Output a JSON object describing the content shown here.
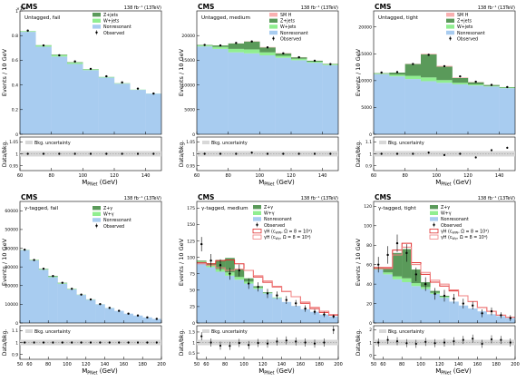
{
  "colors": {
    "nonres": "#a8ccf0",
    "wjets": "#90ee90",
    "zjets": "#5a9a5a",
    "smh": "#f9b0b0",
    "phi1": "#e03030",
    "phi2": "#f08080",
    "unc": "#d8d8d8"
  },
  "chart_data": [
    {
      "type": "histogram",
      "cms": "CMS",
      "lumi": "138 fb⁻¹ (13TeV)",
      "category": "Untagged, fail",
      "xlabel": "M",
      "xlabel_sub": "PNet",
      "xlabel_unit": " (GeV)",
      "ylabel": "Events / 10 GeV",
      "ratio_ylabel": "Data/bkg.",
      "exponent": "×10⁶",
      "xlim": [
        60,
        150
      ],
      "ylim": [
        0,
        1.0
      ],
      "xticks": [
        60,
        80,
        100,
        120,
        140
      ],
      "yticks": [
        0,
        0.2,
        0.4,
        0.6,
        0.8,
        1.0
      ],
      "ytick_labels": [
        "0",
        "0.2",
        "0.4",
        "0.6",
        "0.8",
        "1"
      ],
      "ratio_yticks": [
        0.95,
        1.0,
        1.05
      ],
      "ratio_ylim": [
        0.93,
        1.07
      ],
      "bin_edges": [
        60,
        70,
        80,
        90,
        100,
        110,
        120,
        130,
        140,
        150
      ],
      "stack": [
        {
          "key": "nonres",
          "values": [
            0.83,
            0.71,
            0.63,
            0.57,
            0.52,
            0.46,
            0.41,
            0.36,
            0.33
          ]
        },
        {
          "key": "wjets",
          "values": [
            0.005,
            0.01,
            0.012,
            0.01,
            0.006,
            0.004,
            0.003,
            0.002,
            0.001
          ]
        },
        {
          "key": "zjets",
          "values": [
            0.001,
            0.002,
            0.004,
            0.004,
            0.002,
            0.001,
            0.001,
            0,
            0
          ]
        }
      ],
      "observed": [
        0.84,
        0.72,
        0.64,
        0.59,
        0.53,
        0.47,
        0.42,
        0.37,
        0.33
      ],
      "ratio": [
        1.0,
        1.0,
        1.0,
        1.0,
        1.0,
        1.0,
        1.0,
        1.0,
        1.0
      ],
      "legend": [
        {
          "key": "zjets",
          "label": "Z+jets",
          "kind": "fill"
        },
        {
          "key": "wjets",
          "label": "W+jets",
          "kind": "fill"
        },
        {
          "key": "nonres",
          "label": "Nonresonant",
          "kind": "fill"
        },
        {
          "key": "obs",
          "label": "Observed",
          "kind": "point"
        }
      ],
      "unc_label": "Bkg. uncertainty"
    },
    {
      "type": "histogram",
      "cms": "CMS",
      "lumi": "138 fb⁻¹ (13TeV)",
      "category": "Untagged, medium",
      "xlabel": "M",
      "xlabel_sub": "PNet",
      "xlabel_unit": " (GeV)",
      "ylabel": "Events / 10 GeV",
      "ratio_ylabel": "Data/bkg.",
      "exponent": "",
      "xlim": [
        60,
        150
      ],
      "ylim": [
        0,
        25000
      ],
      "xticks": [
        60,
        80,
        100,
        120,
        140
      ],
      "yticks": [
        0,
        5000,
        10000,
        15000,
        20000
      ],
      "ytick_labels": [
        "0",
        "5000",
        "10000",
        "15000",
        "20000"
      ],
      "ratio_yticks": [
        0.95,
        1.0,
        1.05
      ],
      "ratio_ylim": [
        0.93,
        1.07
      ],
      "bin_edges": [
        60,
        70,
        80,
        90,
        100,
        110,
        120,
        130,
        140,
        150
      ],
      "stack": [
        {
          "key": "nonres",
          "values": [
            17800,
            17300,
            16600,
            16400,
            16000,
            15500,
            15000,
            14500,
            14000
          ]
        },
        {
          "key": "wjets",
          "values": [
            200,
            400,
            700,
            800,
            600,
            400,
            300,
            200,
            150
          ]
        },
        {
          "key": "zjets",
          "values": [
            100,
            300,
            1100,
            1600,
            1000,
            500,
            300,
            200,
            100
          ]
        },
        {
          "key": "smh",
          "values": [
            0,
            0,
            20,
            50,
            80,
            60,
            30,
            10,
            0
          ]
        }
      ],
      "observed": [
        18100,
        18000,
        18500,
        18800,
        17600,
        16400,
        15600,
        14900,
        14200
      ],
      "ratio": [
        1.0,
        1.0,
        1.0,
        1.005,
        1.0,
        1.0,
        1.0,
        1.0,
        1.0
      ],
      "legend": [
        {
          "key": "smh",
          "label": "SM H",
          "kind": "fill"
        },
        {
          "key": "zjets",
          "label": "Z+jets",
          "kind": "fill"
        },
        {
          "key": "wjets",
          "label": "W+jets",
          "kind": "fill"
        },
        {
          "key": "nonres",
          "label": "Nonresonant",
          "kind": "fill"
        },
        {
          "key": "obs",
          "label": "Observed",
          "kind": "point"
        }
      ],
      "unc_label": "Bkg. uncertainty"
    },
    {
      "type": "histogram",
      "cms": "CMS",
      "lumi": "138 fb⁻¹ (13TeV)",
      "category": "Untagged, tight",
      "xlabel": "M",
      "xlabel_sub": "PNet",
      "xlabel_unit": " (GeV)",
      "ylabel": "Events / 10 GeV",
      "ratio_ylabel": "Data/bkg.",
      "exponent": "",
      "xlim": [
        60,
        150
      ],
      "ylim": [
        0,
        23000
      ],
      "xticks": [
        60,
        80,
        100,
        120,
        140
      ],
      "yticks": [
        0,
        5000,
        10000,
        15000,
        20000
      ],
      "ytick_labels": [
        "0",
        "5000",
        "10000",
        "15000",
        "20000"
      ],
      "ratio_yticks": [
        0.9,
        1.0,
        1.1
      ],
      "ratio_ylim": [
        0.86,
        1.14
      ],
      "bin_edges": [
        60,
        70,
        80,
        90,
        100,
        110,
        120,
        130,
        140,
        150
      ],
      "stack": [
        {
          "key": "nonres",
          "values": [
            11200,
            10800,
            10300,
            9900,
            9600,
            9300,
            9100,
            8900,
            8600
          ]
        },
        {
          "key": "wjets",
          "values": [
            100,
            300,
            600,
            700,
            500,
            300,
            200,
            100,
            100
          ]
        },
        {
          "key": "zjets",
          "values": [
            100,
            400,
            2200,
            4300,
            2500,
            900,
            400,
            200,
            100
          ]
        },
        {
          "key": "smh",
          "values": [
            0,
            0,
            40,
            120,
            160,
            100,
            50,
            10,
            0
          ]
        }
      ],
      "observed": [
        11500,
        11600,
        13100,
        14800,
        12700,
        10800,
        9800,
        9200,
        8800
      ],
      "ratio": [
        1.0,
        1.0,
        1.0,
        1.01,
        0.99,
        1.0,
        0.97,
        1.03,
        1.05
      ],
      "legend": [
        {
          "key": "smh",
          "label": "SM H",
          "kind": "fill"
        },
        {
          "key": "zjets",
          "label": "Z+jets",
          "kind": "fill"
        },
        {
          "key": "wjets",
          "label": "W+jets",
          "kind": "fill"
        },
        {
          "key": "nonres",
          "label": "Nonresonant",
          "kind": "fill"
        },
        {
          "key": "obs",
          "label": "Observed",
          "kind": "point"
        }
      ],
      "unc_label": "Bkg. uncertainty"
    },
    {
      "type": "histogram",
      "cms": "CMS",
      "lumi": "138 fb⁻¹ (13TeV)",
      "category": "γ-tagged, fail",
      "xlabel": "M",
      "xlabel_sub": "PNet",
      "xlabel_unit": " (GeV)",
      "ylabel": "Events / 10 GeV",
      "ratio_ylabel": "Data/bkg.",
      "exponent": "",
      "xlim": [
        50,
        200
      ],
      "ylim": [
        0,
        65000
      ],
      "xticks": [
        50,
        60,
        80,
        100,
        120,
        140,
        160,
        180,
        200
      ],
      "yticks": [
        0,
        10000,
        20000,
        30000,
        40000,
        50000,
        60000
      ],
      "ytick_labels": [
        "0",
        "10000",
        "20000",
        "30000",
        "40000",
        "50000",
        "60000"
      ],
      "ratio_yticks": [
        0.9,
        1.0,
        1.1
      ],
      "ratio_ylim": [
        0.86,
        1.14
      ],
      "bin_edges": [
        50,
        60,
        70,
        80,
        90,
        100,
        110,
        120,
        130,
        140,
        150,
        160,
        170,
        180,
        190,
        200
      ],
      "stack": [
        {
          "key": "nonres",
          "values": [
            39000,
            33500,
            28500,
            24500,
            21000,
            18000,
            15000,
            12500,
            10000,
            8000,
            6500,
            5000,
            4000,
            3000,
            2200
          ]
        },
        {
          "key": "wjets",
          "values": [
            100,
            200,
            300,
            400,
            300,
            200,
            100,
            100,
            50,
            50,
            0,
            0,
            0,
            0,
            0
          ]
        },
        {
          "key": "zjets",
          "values": [
            50,
            100,
            200,
            300,
            200,
            100,
            50,
            50,
            0,
            0,
            0,
            0,
            0,
            0,
            0
          ]
        }
      ],
      "observed": [
        39200,
        33700,
        29000,
        25100,
        21500,
        18300,
        15200,
        12600,
        10100,
        8100,
        6500,
        5000,
        4000,
        3000,
        2200
      ],
      "ratio": [
        1.0,
        1.0,
        1.0,
        1.0,
        1.0,
        1.0,
        1.0,
        1.0,
        1.0,
        1.0,
        1.0,
        1.0,
        1.0,
        1.0,
        1.0
      ],
      "legend": [
        {
          "key": "zjets",
          "label": "Z+γ",
          "kind": "fill"
        },
        {
          "key": "wjets",
          "label": "W+γ",
          "kind": "fill"
        },
        {
          "key": "nonres",
          "label": "Nonresonant",
          "kind": "fill"
        },
        {
          "key": "obs",
          "label": "Observed",
          "kind": "point"
        }
      ],
      "unc_label": "Bkg. uncertainty"
    },
    {
      "type": "histogram",
      "cms": "CMS",
      "lumi": "138 fb⁻¹ (13TeV)",
      "category": "γ-tagged, medium",
      "xlabel": "M",
      "xlabel_sub": "PNet",
      "xlabel_unit": " (GeV)",
      "ylabel": "Events / 10 GeV",
      "ratio_ylabel": "Data/bkg.",
      "exponent": "",
      "xlim": [
        50,
        200
      ],
      "ylim": [
        0,
        185
      ],
      "xticks": [
        50,
        60,
        80,
        100,
        120,
        140,
        160,
        180,
        200
      ],
      "yticks": [
        0,
        25,
        50,
        75,
        100,
        125,
        150,
        175
      ],
      "ytick_labels": [
        "0",
        "25",
        "50",
        "75",
        "100",
        "125",
        "150",
        "175"
      ],
      "ratio_yticks": [
        0.5,
        1.0,
        1.5
      ],
      "ratio_ylim": [
        0.2,
        1.8
      ],
      "bin_edges": [
        50,
        60,
        70,
        80,
        90,
        100,
        110,
        120,
        130,
        140,
        150,
        160,
        170,
        180,
        190,
        200
      ],
      "stack": [
        {
          "key": "nonres",
          "values": [
            92,
            85,
            78,
            72,
            66,
            60,
            52,
            45,
            38,
            32,
            26,
            21,
            17,
            13,
            10
          ]
        },
        {
          "key": "wjets",
          "values": [
            2,
            3,
            4,
            5,
            4,
            3,
            2,
            1,
            1,
            0,
            0,
            0,
            0,
            0,
            0
          ]
        },
        {
          "key": "zjets",
          "values": [
            1,
            3,
            14,
            22,
            12,
            5,
            2,
            1,
            0,
            0,
            0,
            0,
            0,
            0,
            0
          ]
        }
      ],
      "sig1": [
        92,
        90,
        95,
        96,
        90,
        80,
        70,
        62,
        55,
        48,
        40,
        30,
        22,
        16,
        12
      ],
      "sig2": [
        90,
        88,
        84,
        80,
        82,
        80,
        72,
        64,
        56,
        48,
        40,
        32,
        24,
        18,
        13
      ],
      "observed": [
        120,
        95,
        88,
        75,
        80,
        60,
        55,
        45,
        42,
        35,
        30,
        22,
        17,
        13,
        10
      ],
      "obs_err": [
        11,
        10,
        9,
        9,
        9,
        8,
        7,
        7,
        6,
        6,
        5,
        5,
        4,
        4,
        3
      ],
      "ratio": [
        1.3,
        1.0,
        0.85,
        0.84,
        0.98,
        0.88,
        0.98,
        0.95,
        1.05,
        1.1,
        1.05,
        1.0,
        0.95,
        1.0,
        1.6
      ],
      "legend": [
        {
          "key": "zjets",
          "label": "Z+γ",
          "kind": "fill"
        },
        {
          "key": "wjets",
          "label": "W+γ",
          "kind": "fill"
        },
        {
          "key": "nonres",
          "label": "Nonresonant",
          "kind": "fill"
        },
        {
          "key": "obs",
          "label": "Observed",
          "kind": "point"
        },
        {
          "key": "phi1",
          "label": "γH (c",
          "label_sub": "WW",
          "label_end": ", Ω = 8 = 10⁴)",
          "kind": "line"
        },
        {
          "key": "phi2",
          "label": "γH (c",
          "label_sub": "Wγ",
          "label_end": ", Ω = 8 = 10⁴)",
          "kind": "line"
        }
      ],
      "unc_label": "Bkg. uncertainty"
    },
    {
      "type": "histogram",
      "cms": "CMS",
      "lumi": "138 fb⁻¹ (13TeV)",
      "category": "γ-tagged, tight",
      "xlabel": "M",
      "xlabel_sub": "PNet",
      "xlabel_unit": " (GeV)",
      "ylabel": "Events / 10 GeV",
      "ratio_ylabel": "Data/bkg.",
      "exponent": "",
      "xlim": [
        50,
        200
      ],
      "ylim": [
        0,
        125
      ],
      "xticks": [
        50,
        60,
        80,
        100,
        120,
        140,
        160,
        180,
        200
      ],
      "yticks": [
        0,
        20,
        40,
        60,
        80,
        100,
        120
      ],
      "ytick_labels": [
        "0",
        "20",
        "40",
        "60",
        "80",
        "100",
        "120"
      ],
      "ratio_yticks": [
        0,
        1,
        2
      ],
      "ratio_ylim": [
        -0.3,
        2.3
      ],
      "bin_edges": [
        50,
        60,
        70,
        80,
        90,
        100,
        110,
        120,
        130,
        140,
        150,
        160,
        170,
        180,
        190,
        200
      ],
      "stack": [
        {
          "key": "nonres",
          "values": [
            55,
            50,
            45,
            42,
            38,
            35,
            30,
            26,
            22,
            18,
            15,
            12,
            9,
            7,
            5
          ]
        },
        {
          "key": "wjets",
          "values": [
            1,
            2,
            3,
            4,
            3,
            2,
            1,
            1,
            0,
            0,
            0,
            0,
            0,
            0,
            0
          ]
        },
        {
          "key": "zjets",
          "values": [
            1,
            4,
            24,
            30,
            14,
            5,
            2,
            1,
            0,
            0,
            0,
            0,
            0,
            0,
            0
          ]
        }
      ],
      "sig1": [
        57,
        57,
        75,
        82,
        62,
        50,
        42,
        38,
        33,
        28,
        22,
        16,
        12,
        8,
        6
      ],
      "sig2": [
        56,
        56,
        70,
        78,
        60,
        52,
        44,
        40,
        34,
        28,
        22,
        16,
        12,
        8,
        6
      ],
      "observed": [
        60,
        70,
        82,
        72,
        50,
        40,
        30,
        28,
        25,
        20,
        18,
        10,
        12,
        8,
        5
      ],
      "obs_err": [
        8,
        9,
        9,
        9,
        7,
        7,
        6,
        6,
        5,
        5,
        4,
        4,
        4,
        3,
        3
      ],
      "ratio": [
        1.0,
        1.2,
        1.1,
        0.95,
        0.9,
        1.05,
        0.95,
        1.0,
        1.1,
        1.2,
        1.3,
        0.9,
        1.25,
        1.2,
        1.0
      ],
      "legend": [
        {
          "key": "zjets",
          "label": "Z+γ",
          "kind": "fill"
        },
        {
          "key": "wjets",
          "label": "W+γ",
          "kind": "fill"
        },
        {
          "key": "nonres",
          "label": "Nonresonant",
          "kind": "fill"
        },
        {
          "key": "obs",
          "label": "Observed",
          "kind": "point"
        },
        {
          "key": "phi1",
          "label": "γH (c",
          "label_sub": "WW",
          "label_end": ", Ω = 8 = 10⁴)",
          "kind": "line"
        },
        {
          "key": "phi2",
          "label": "γH (c",
          "label_sub": "Wγ",
          "label_end": ", Ω = 8 = 10⁴)",
          "kind": "line"
        }
      ],
      "unc_label": "Bkg. uncertainty"
    }
  ]
}
